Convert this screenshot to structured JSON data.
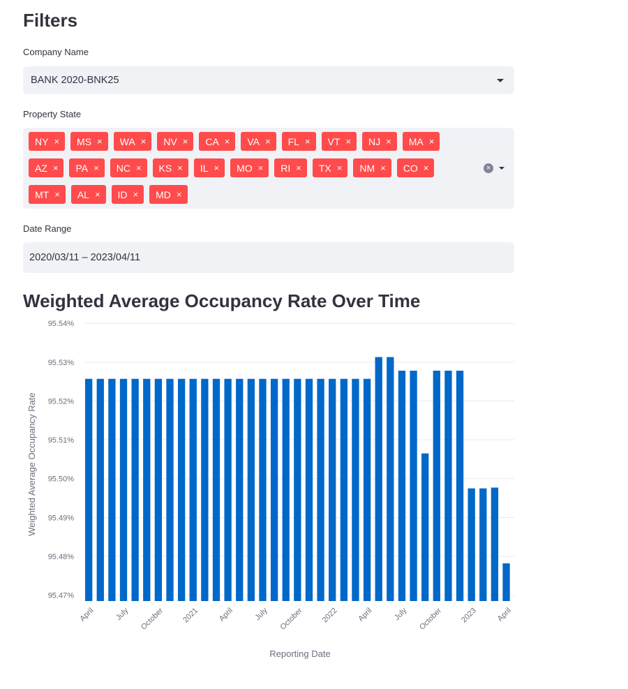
{
  "filters": {
    "title": "Filters",
    "company": {
      "label": "Company Name",
      "value": "BANK 2020-BNK25"
    },
    "states": {
      "label": "Property State",
      "rows": [
        [
          "NY",
          "MS",
          "WA",
          "NV",
          "CA",
          "VA",
          "FL",
          "VT",
          "NJ",
          "MA"
        ],
        [
          "AZ",
          "PA",
          "NC",
          "KS",
          "IL",
          "MO",
          "RI",
          "TX",
          "NM",
          "CO"
        ],
        [
          "MT",
          "AL",
          "ID",
          "MD"
        ]
      ],
      "remove_glyph": "×",
      "clear_glyph": "×"
    },
    "date_range": {
      "label": "Date Range",
      "value": "2020/03/11 – 2023/04/11"
    }
  },
  "colors": {
    "accent": "#ff4b4b",
    "bar": "#0068c9",
    "input_bg": "#f0f2f6"
  },
  "chart_data": {
    "type": "bar",
    "title": "Weighted Average Occupancy Rate Over Time",
    "xlabel": "Reporting Date",
    "ylabel": "Weighted Average Occupancy Rate",
    "ylim": [
      95.4685,
      95.5402
    ],
    "yticks": [
      95.47,
      95.48,
      95.49,
      95.5,
      95.51,
      95.52,
      95.53,
      95.54
    ],
    "ytick_labels": [
      "95.47%",
      "95.48%",
      "95.49%",
      "95.50%",
      "95.51%",
      "95.52%",
      "95.53%",
      "95.54%"
    ],
    "xtick_labels": [
      "April",
      "July",
      "October",
      "2021",
      "April",
      "July",
      "October",
      "2022",
      "April",
      "July",
      "October",
      "2023",
      "April"
    ],
    "xtick_bar_index": [
      0.5,
      3.5,
      6.5,
      9.5,
      12.5,
      15.5,
      18.5,
      21.5,
      24.5,
      27.5,
      30.5,
      33.5,
      36.5
    ],
    "values": [
      95.5257,
      95.5257,
      95.5257,
      95.5257,
      95.5257,
      95.5257,
      95.5257,
      95.5257,
      95.5257,
      95.5257,
      95.5257,
      95.5257,
      95.5257,
      95.5257,
      95.5257,
      95.5257,
      95.5257,
      95.5257,
      95.5257,
      95.5257,
      95.5257,
      95.5257,
      95.5257,
      95.5257,
      95.5257,
      95.5313,
      95.5313,
      95.5278,
      95.5278,
      95.5065,
      95.5278,
      95.5278,
      95.5278,
      95.4975,
      95.4975,
      95.4977,
      95.4782
    ]
  }
}
